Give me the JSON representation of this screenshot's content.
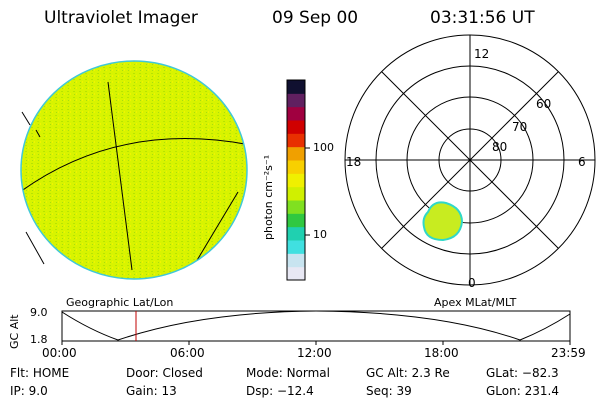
{
  "header": {
    "title": "Ultraviolet Imager",
    "date": "09 Sep 00",
    "time": "03:31:56 UT"
  },
  "colorbar": {
    "label": "photon cm⁻²s⁻¹",
    "tick_high": "100",
    "tick_low": "10",
    "colors": [
      "#e8e8f4",
      "#c8e4f0",
      "#40e0e0",
      "#20d0b0",
      "#30c840",
      "#80e020",
      "#d0f000",
      "#f0f000",
      "#f8d000",
      "#f0a000",
      "#e83000",
      "#d00000",
      "#a00040",
      "#602060",
      "#101030"
    ]
  },
  "polar_plot": {
    "mlt_labels": {
      "top": "12",
      "left": "18",
      "right": "6",
      "bottom": "0"
    },
    "lat_labels": [
      "60",
      "70",
      "80"
    ]
  },
  "map_labels": {
    "left": "Geographic Lat/Lon",
    "right": "Apex MLat/MLT"
  },
  "altitude_plot": {
    "ylabel": "GC Alt",
    "yticks": [
      "9.0",
      "1.8"
    ],
    "xticks": [
      "00:00",
      "06:00",
      "12:00",
      "18:00",
      "23:59"
    ],
    "marker_time": "03:31:56"
  },
  "status": {
    "row1": [
      {
        "label": "Flt:",
        "value": "HOME"
      },
      {
        "label": "Door:",
        "value": "Closed"
      },
      {
        "label": "Mode:",
        "value": "Normal"
      },
      {
        "label": "GC Alt:",
        "value": "2.3 Re"
      },
      {
        "label": "GLat:",
        "value": "−82.3"
      }
    ],
    "row2": [
      {
        "label": "IP:",
        "value": "9.0"
      },
      {
        "label": "Gain:",
        "value": "13"
      },
      {
        "label": "Dsp:",
        "value": "−12.4"
      },
      {
        "label": "Seq:",
        "value": "39"
      },
      {
        "label": "GLon:",
        "value": "231.4"
      }
    ]
  }
}
